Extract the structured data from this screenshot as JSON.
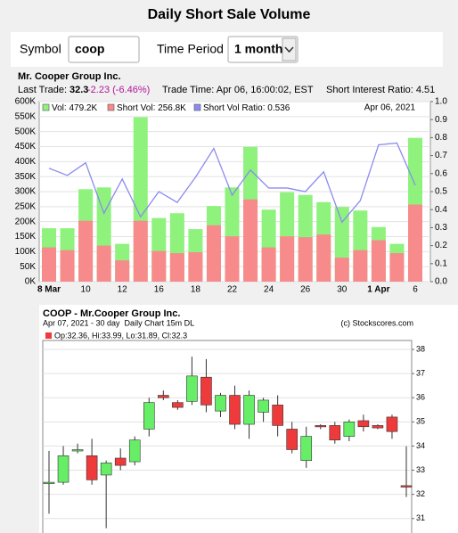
{
  "header": {
    "title": "Daily Short Sale Volume"
  },
  "form": {
    "symbol_label": "Symbol",
    "symbol_value": "coop",
    "period_label": "Time Period",
    "period_value": "1 month"
  },
  "quote": {
    "company": "Mr. Cooper Group Inc.",
    "last_trade_label": "Last Trade:",
    "last_trade": "32.3",
    "change": "-2.23 (-6.46%)",
    "trade_time": "Trade Time: Apr 06, 16:00:02, EST",
    "short_interest": "Short Interest Ratio: 4.51"
  },
  "chart_data": [
    {
      "type": "bar",
      "date": "Apr 06, 2021",
      "categories": [
        "8 Mar",
        null,
        "10",
        null,
        "12",
        null,
        "16",
        null,
        "18",
        null,
        "22",
        null,
        "24",
        null,
        "26",
        null,
        "30",
        null,
        "1 Apr",
        null,
        "6"
      ],
      "series": [
        {
          "name": "Vol",
          "legend_value": "479.2K",
          "color": "#8ef27c",
          "values": [
            178000,
            178000,
            308000,
            314000,
            126000,
            548000,
            212000,
            228000,
            175000,
            252000,
            314000,
            449000,
            240000,
            298000,
            289000,
            265000,
            249000,
            237000,
            182000,
            126000,
            479200
          ]
        },
        {
          "name": "Short Vol",
          "legend_value": "256.8K",
          "color": "#f78a8a",
          "values": [
            114000,
            105000,
            203000,
            120000,
            71000,
            203000,
            102000,
            95000,
            98000,
            188000,
            151000,
            274000,
            114000,
            151000,
            148000,
            157000,
            80000,
            105000,
            138000,
            95000,
            256800
          ]
        },
        {
          "name": "Short Vol Ratio",
          "legend_value": "0.536",
          "color": "#8b8bf0",
          "type": "line",
          "axis": "y2",
          "values": [
            0.63,
            0.59,
            0.66,
            0.38,
            0.57,
            0.36,
            0.5,
            0.44,
            0.58,
            0.74,
            0.48,
            0.62,
            0.52,
            0.52,
            0.5,
            0.61,
            0.33,
            0.45,
            0.76,
            0.77,
            0.536
          ]
        }
      ],
      "ylim": [
        0,
        600000
      ],
      "yticks": [
        {
          "value": 0,
          "label": "0K"
        },
        {
          "value": 50000,
          "label": "50K"
        },
        {
          "value": 100000,
          "label": "100K"
        },
        {
          "value": 150000,
          "label": "150K"
        },
        {
          "value": 200000,
          "label": "200K"
        },
        {
          "value": 250000,
          "label": "250K"
        },
        {
          "value": 300000,
          "label": "300K"
        },
        {
          "value": 350000,
          "label": "350K"
        },
        {
          "value": 400000,
          "label": "400K"
        },
        {
          "value": 450000,
          "label": "450K"
        },
        {
          "value": 500000,
          "label": "500K"
        },
        {
          "value": 550000,
          "label": "550K"
        },
        {
          "value": 600000,
          "label": "600K"
        }
      ],
      "y2lim": [
        0,
        1
      ],
      "y2ticks": [
        {
          "value": 0,
          "label": "0.0"
        },
        0.1,
        0.2,
        0.3,
        0.4,
        0.5,
        0.6,
        0.7,
        0.8,
        0.9,
        {
          "value": 1,
          "label": "1.0"
        }
      ],
      "grid": true
    },
    {
      "type": "candlestick",
      "title": "COOP - Mr.Cooper Group Inc.",
      "subtitle": "Apr 07, 2021 - 30 day  Daily Chart 15m DL",
      "credit": "(c) Stockscores.com",
      "legend": "Op:32.36, Hi:33.99, Lo:31.89, Cl:32.3",
      "up_color": "#66ee66",
      "down_color": "#ee3a3a",
      "ylim": [
        30.4,
        38.37
      ],
      "yticks": [
        31,
        32,
        33,
        34,
        35,
        36,
        37,
        38
      ],
      "grid": true,
      "candles": [
        {
          "open": 32.45,
          "high": 33.8,
          "low": 31.2,
          "close": 32.5
        },
        {
          "open": 32.5,
          "high": 34.0,
          "low": 32.4,
          "close": 33.6
        },
        {
          "open": 33.8,
          "high": 34.1,
          "low": 33.7,
          "close": 33.85
        },
        {
          "open": 33.6,
          "high": 34.3,
          "low": 32.4,
          "close": 32.6
        },
        {
          "open": 32.8,
          "high": 33.4,
          "low": 30.6,
          "close": 33.3
        },
        {
          "open": 33.5,
          "high": 33.9,
          "low": 33.0,
          "close": 33.2
        },
        {
          "open": 33.35,
          "high": 34.4,
          "low": 33.2,
          "close": 34.25
        },
        {
          "open": 34.7,
          "high": 36.0,
          "low": 34.4,
          "close": 35.8
        },
        {
          "open": 36.1,
          "high": 36.3,
          "low": 35.9,
          "close": 36.0
        },
        {
          "open": 35.8,
          "high": 35.9,
          "low": 35.5,
          "close": 35.6
        },
        {
          "open": 35.85,
          "high": 37.7,
          "low": 35.7,
          "close": 36.9
        },
        {
          "open": 36.85,
          "high": 37.6,
          "low": 35.4,
          "close": 35.7
        },
        {
          "open": 35.45,
          "high": 36.2,
          "low": 35.2,
          "close": 36.1
        },
        {
          "open": 36.1,
          "high": 36.5,
          "low": 34.7,
          "close": 34.9
        },
        {
          "open": 34.9,
          "high": 36.3,
          "low": 34.3,
          "close": 36.1
        },
        {
          "open": 35.4,
          "high": 36.0,
          "low": 35.0,
          "close": 35.9
        },
        {
          "open": 35.7,
          "high": 36.1,
          "low": 34.4,
          "close": 34.85
        },
        {
          "open": 34.7,
          "high": 35.0,
          "low": 33.7,
          "close": 33.85
        },
        {
          "open": 33.4,
          "high": 34.8,
          "low": 33.1,
          "close": 34.4
        },
        {
          "open": 34.85,
          "high": 34.9,
          "low": 34.7,
          "close": 34.8
        },
        {
          "open": 34.85,
          "high": 35.0,
          "low": 34.1,
          "close": 34.25
        },
        {
          "open": 34.4,
          "high": 35.1,
          "low": 34.2,
          "close": 35.0
        },
        {
          "open": 35.05,
          "high": 35.3,
          "low": 34.6,
          "close": 34.8
        },
        {
          "open": 34.85,
          "high": 34.9,
          "low": 34.7,
          "close": 34.75
        },
        {
          "open": 35.2,
          "high": 35.3,
          "low": 34.3,
          "close": 34.6
        },
        {
          "open": 32.36,
          "high": 33.99,
          "low": 31.89,
          "close": 32.3
        }
      ]
    }
  ]
}
